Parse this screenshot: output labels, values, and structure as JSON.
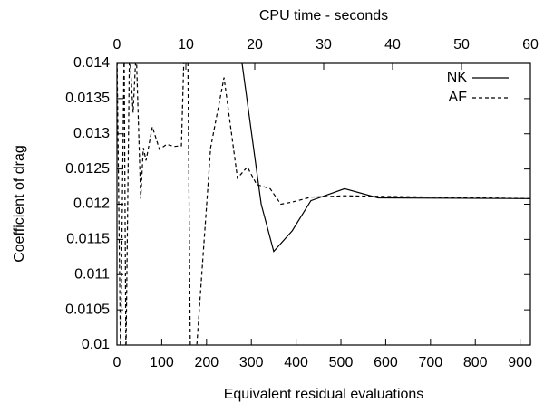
{
  "chart_data": {
    "type": "line",
    "xlabel": "Equivalent residual evaluations",
    "x2label": "CPU time - seconds",
    "ylabel": "Coefficient of drag",
    "xlim": [
      0,
      923
    ],
    "xticks": [
      0,
      100,
      200,
      300,
      400,
      500,
      600,
      700,
      800,
      900
    ],
    "x2lim": [
      0,
      60
    ],
    "x2ticks": [
      0,
      10,
      20,
      30,
      40,
      50,
      60
    ],
    "ylim": [
      0.01,
      0.014
    ],
    "yticks": [
      0.01,
      0.0105,
      0.011,
      0.0115,
      0.012,
      0.0125,
      0.013,
      0.0135,
      0.014
    ],
    "legend": "upper right",
    "series": [
      {
        "name": "NK",
        "color": "#000000",
        "dash": "solid",
        "x": [
          275,
          322,
          350,
          391,
          433,
          508,
          583,
          923
        ],
        "values": [
          0.0142,
          0.012,
          0.01133,
          0.01162,
          0.01205,
          0.01222,
          0.01209,
          0.01208
        ]
      },
      {
        "name": "AF",
        "color": "#000000",
        "dash": "dashed",
        "x": [
          0,
          8,
          16,
          20,
          28,
          36,
          43,
          53,
          59,
          65,
          79,
          95,
          111,
          128,
          144,
          150,
          158,
          164,
          176,
          209,
          239,
          269,
          291,
          312,
          342,
          366,
          391,
          433,
          508,
          923
        ],
        "values": [
          0.0142,
          0.0098,
          0.0142,
          0.0098,
          0.0142,
          0.0133,
          0.0142,
          0.01208,
          0.0128,
          0.01262,
          0.0131,
          0.01278,
          0.01285,
          0.01282,
          0.01283,
          0.0142,
          0.0142,
          0.0098,
          0.0098,
          0.0128,
          0.0138,
          0.01237,
          0.01253,
          0.01228,
          0.01222,
          0.012,
          0.01203,
          0.0121,
          0.01212,
          0.01208
        ]
      }
    ]
  }
}
